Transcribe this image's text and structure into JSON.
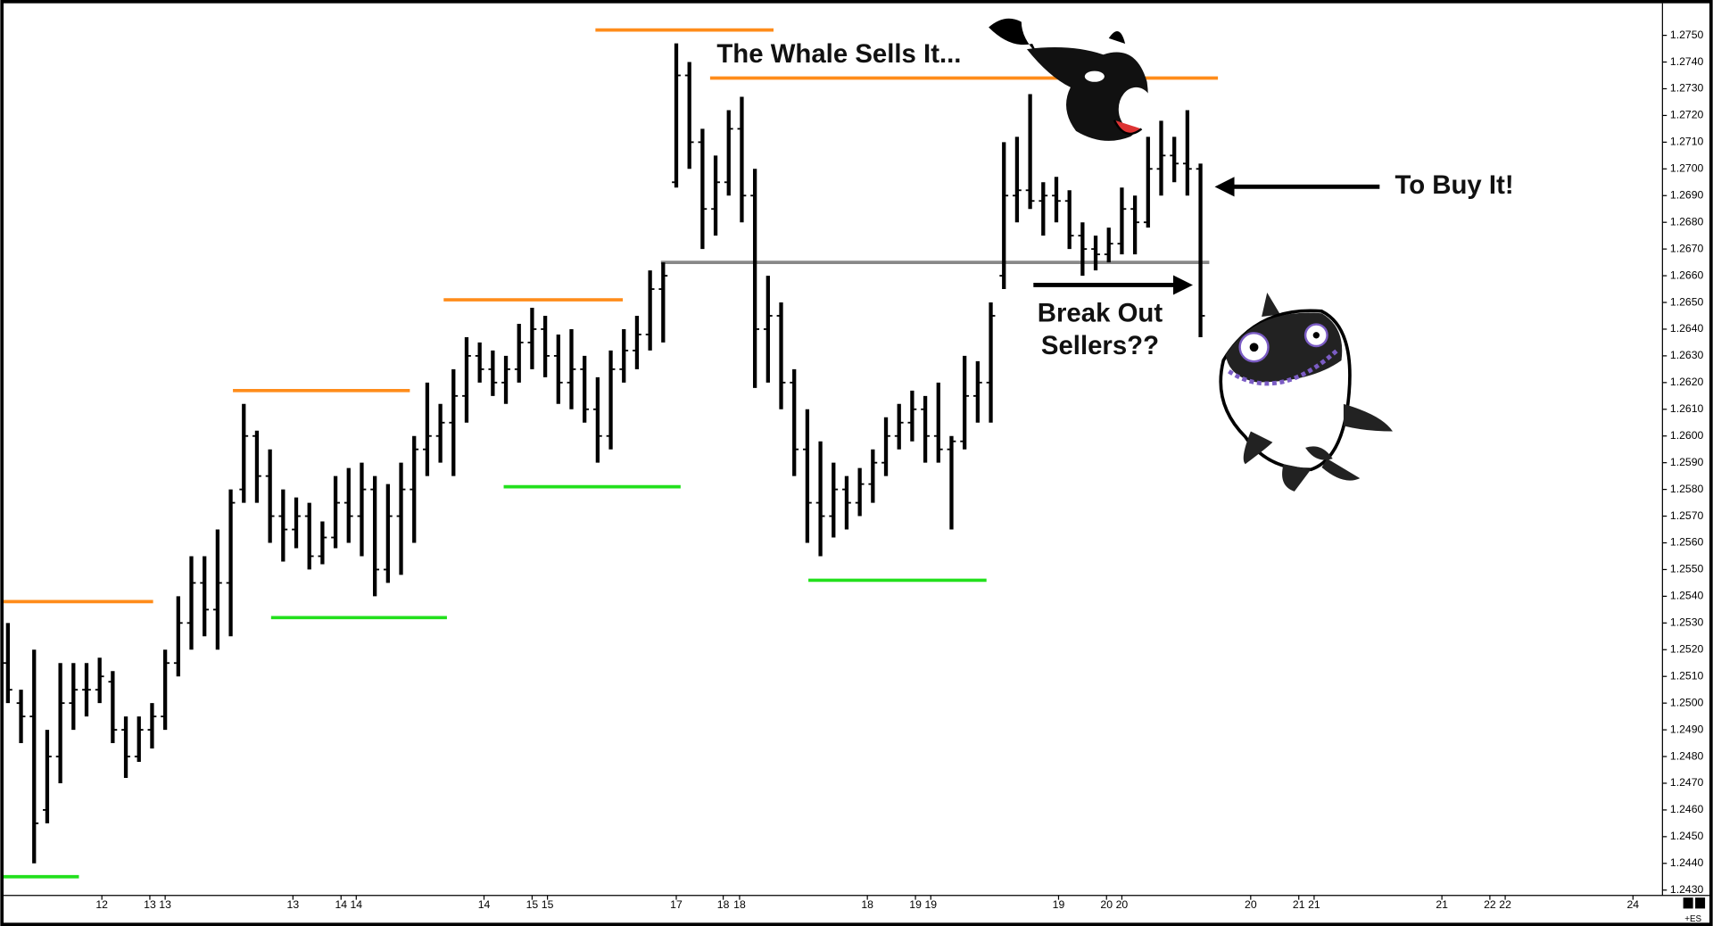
{
  "chart_data": {
    "type": "ohlc",
    "symbol": "+ES",
    "annotations": [
      "The Whale Sells It...",
      "To Buy It!",
      [
        "Break Out",
        "Sellers??"
      ]
    ],
    "color": "#000000",
    "x": [
      0,
      1,
      2,
      3,
      4,
      5,
      6,
      7,
      8,
      9,
      10,
      11,
      12,
      13,
      14,
      15,
      16,
      17,
      18,
      19,
      20,
      21,
      22,
      23,
      24,
      25,
      26,
      27,
      28,
      29,
      30,
      31,
      32,
      33,
      34,
      35,
      36,
      37,
      38,
      39,
      40,
      41,
      42,
      43,
      44,
      45,
      46,
      47,
      48,
      49,
      50,
      51,
      52,
      53,
      54,
      55,
      56,
      57,
      58,
      59,
      60,
      61,
      62,
      63,
      64,
      65,
      66,
      67,
      68,
      69,
      70,
      71,
      72,
      73,
      74,
      75,
      76,
      77,
      78,
      79,
      80,
      81,
      82,
      83,
      84,
      85,
      86,
      87,
      88,
      89,
      90,
      91
    ],
    "open": [
      1.2515,
      1.25,
      1.2495,
      1.246,
      1.248,
      1.25,
      1.2505,
      1.2505,
      1.2508,
      1.249,
      1.248,
      1.249,
      1.2495,
      1.2515,
      1.253,
      1.2545,
      1.2535,
      1.2545,
      1.258,
      1.26,
      1.2585,
      1.257,
      1.2565,
      1.257,
      1.2555,
      1.2562,
      1.2575,
      1.257,
      1.258,
      1.255,
      1.257,
      1.258,
      1.2595,
      1.26,
      1.2605,
      1.2615,
      1.263,
      1.2625,
      1.262,
      1.2625,
      1.2635,
      1.264,
      1.263,
      1.262,
      1.2625,
      1.261,
      1.26,
      1.2625,
      1.2632,
      1.2638,
      1.2655,
      1.2695,
      1.2735,
      1.271,
      1.2685,
      1.2695,
      1.2715,
      1.269,
      1.264,
      1.2645,
      1.262,
      1.2595,
      1.2575,
      1.257,
      1.258,
      1.2575,
      1.2582,
      1.259,
      1.26,
      1.2605,
      1.261,
      1.26,
      1.2595,
      1.2598,
      1.2615,
      1.262,
      1.266,
      1.269,
      1.2692,
      1.2688,
      1.269,
      1.2688,
      1.2675,
      1.267,
      1.2668,
      1.2672,
      1.2685,
      1.268,
      1.27,
      1.2705,
      1.2702,
      1.27
    ],
    "high": [
      1.253,
      1.2505,
      1.252,
      1.249,
      1.2515,
      1.2515,
      1.2515,
      1.2517,
      1.2512,
      1.2495,
      1.2495,
      1.25,
      1.252,
      1.254,
      1.2555,
      1.2555,
      1.2565,
      1.258,
      1.2612,
      1.2602,
      1.2595,
      1.258,
      1.2577,
      1.2575,
      1.2568,
      1.2585,
      1.2588,
      1.259,
      1.2585,
      1.2582,
      1.259,
      1.26,
      1.262,
      1.2612,
      1.2625,
      1.2637,
      1.2635,
      1.2632,
      1.263,
      1.2642,
      1.2648,
      1.2645,
      1.2638,
      1.264,
      1.263,
      1.2622,
      1.2632,
      1.264,
      1.2645,
      1.2662,
      1.2665,
      1.2747,
      1.274,
      1.2715,
      1.2705,
      1.2722,
      1.2727,
      1.27,
      1.266,
      1.265,
      1.2625,
      1.261,
      1.2598,
      1.259,
      1.2585,
      1.2588,
      1.2595,
      1.2607,
      1.2612,
      1.2617,
      1.2615,
      1.262,
      1.26,
      1.263,
      1.2628,
      1.265,
      1.271,
      1.2712,
      1.2728,
      1.2695,
      1.2697,
      1.2692,
      1.268,
      1.2675,
      1.2678,
      1.2693,
      1.269,
      1.2712,
      1.2718,
      1.2712,
      1.2722,
      1.2702
    ],
    "low": [
      1.25,
      1.2485,
      1.244,
      1.2455,
      1.247,
      1.249,
      1.2495,
      1.25,
      1.2485,
      1.2472,
      1.2478,
      1.2483,
      1.249,
      1.251,
      1.252,
      1.2525,
      1.252,
      1.2525,
      1.2575,
      1.2575,
      1.256,
      1.2553,
      1.2558,
      1.255,
      1.2552,
      1.2558,
      1.256,
      1.2555,
      1.254,
      1.2545,
      1.2548,
      1.256,
      1.2585,
      1.259,
      1.2585,
      1.2605,
      1.262,
      1.2615,
      1.2612,
      1.262,
      1.2625,
      1.2622,
      1.2612,
      1.261,
      1.2605,
      1.259,
      1.2595,
      1.262,
      1.2625,
      1.2632,
      1.2635,
      1.2693,
      1.27,
      1.267,
      1.2675,
      1.269,
      1.268,
      1.2618,
      1.262,
      1.261,
      1.2585,
      1.256,
      1.2555,
      1.2562,
      1.2565,
      1.257,
      1.2575,
      1.2585,
      1.2595,
      1.2598,
      1.259,
      1.259,
      1.2565,
      1.2595,
      1.2605,
      1.2605,
      1.2655,
      1.268,
      1.2685,
      1.2675,
      1.268,
      1.267,
      1.266,
      1.2662,
      1.2665,
      1.2668,
      1.2668,
      1.2678,
      1.269,
      1.2695,
      1.269,
      1.2637
    ],
    "close": [
      1.2505,
      1.2495,
      1.2455,
      1.248,
      1.25,
      1.2505,
      1.2505,
      1.251,
      1.249,
      1.248,
      1.249,
      1.2495,
      1.2515,
      1.253,
      1.2545,
      1.2535,
      1.2545,
      1.2575,
      1.26,
      1.2585,
      1.257,
      1.2565,
      1.257,
      1.2555,
      1.2562,
      1.2575,
      1.257,
      1.258,
      1.255,
      1.257,
      1.258,
      1.2595,
      1.26,
      1.2605,
      1.2615,
      1.263,
      1.2625,
      1.262,
      1.2625,
      1.2635,
      1.264,
      1.263,
      1.262,
      1.2625,
      1.261,
      1.26,
      1.2625,
      1.2632,
      1.2638,
      1.2655,
      1.266,
      1.2735,
      1.271,
      1.2685,
      1.2695,
      1.2715,
      1.269,
      1.264,
      1.2645,
      1.262,
      1.2595,
      1.2575,
      1.257,
      1.258,
      1.2575,
      1.2582,
      1.259,
      1.26,
      1.2605,
      1.261,
      1.26,
      1.2595,
      1.2598,
      1.2615,
      1.262,
      1.2645,
      1.269,
      1.2692,
      1.2688,
      1.269,
      1.2688,
      1.2675,
      1.267,
      1.2668,
      1.2672,
      1.2685,
      1.268,
      1.27,
      1.2705,
      1.2702,
      1.27,
      1.2645
    ],
    "levels": [
      {
        "value": 1.2538,
        "x": [
          -0.33,
          11.08
        ],
        "color": "#ff8c1a"
      },
      {
        "value": 1.2617,
        "x": [
          17.17,
          30.67
        ],
        "color": "#ff8c1a"
      },
      {
        "value": 1.2651,
        "x": [
          33.25,
          46.92
        ],
        "color": "#ff8c1a"
      },
      {
        "value": 1.2752,
        "x": [
          44.83,
          58.42
        ],
        "color": "#ff8c1a"
      },
      {
        "value": 1.2734,
        "x": [
          53.58,
          92.33
        ],
        "color": "#ff8c1a"
      },
      {
        "value": 1.2435,
        "x": [
          -0.33,
          5.42
        ],
        "color": "#22e01c"
      },
      {
        "value": 1.2532,
        "x": [
          20.08,
          33.5
        ],
        "color": "#22e01c"
      },
      {
        "value": 1.2581,
        "x": [
          37.83,
          51.33
        ],
        "color": "#22e01c"
      },
      {
        "value": 1.2546,
        "x": [
          61.08,
          74.67
        ],
        "color": "#22e01c"
      },
      {
        "value": 1.2665,
        "x": [
          49.83,
          91.67
        ],
        "color": "#888888"
      }
    ],
    "xlim": [
      -0.33,
      126.25
    ],
    "xticks": [
      {
        "value": 7.17,
        "label": "12"
      },
      {
        "value": 10.83,
        "label": "13"
      },
      {
        "value": 12,
        "label": "13"
      },
      {
        "value": 21.75,
        "label": "13"
      },
      {
        "value": 25.42,
        "label": "14"
      },
      {
        "value": 26.58,
        "label": "14"
      },
      {
        "value": 36.33,
        "label": "14"
      },
      {
        "value": 40,
        "label": "15"
      },
      {
        "value": 41.17,
        "label": "15"
      },
      {
        "value": 51,
        "label": "17"
      },
      {
        "value": 54.58,
        "label": "18"
      },
      {
        "value": 55.83,
        "label": "18"
      },
      {
        "value": 65.58,
        "label": "18"
      },
      {
        "value": 69.25,
        "label": "19"
      },
      {
        "value": 70.42,
        "label": "19"
      },
      {
        "value": 80.17,
        "label": "19"
      },
      {
        "value": 83.83,
        "label": "20"
      },
      {
        "value": 85,
        "label": "20"
      },
      {
        "value": 94.83,
        "label": "20"
      },
      {
        "value": 98.5,
        "label": "21"
      },
      {
        "value": 99.67,
        "label": "21"
      },
      {
        "value": 109.42,
        "label": "21"
      },
      {
        "value": 113.08,
        "label": "22"
      },
      {
        "value": 114.25,
        "label": "22"
      },
      {
        "value": 124,
        "label": "24"
      }
    ],
    "ylim": [
      1.2428,
      1.2762
    ],
    "yticks": [
      {
        "value": 1.243,
        "label": "1.2430"
      },
      {
        "value": 1.244,
        "label": "1.2440"
      },
      {
        "value": 1.245,
        "label": "1.2450"
      },
      {
        "value": 1.246,
        "label": "1.2460"
      },
      {
        "value": 1.247,
        "label": "1.2470"
      },
      {
        "value": 1.248,
        "label": "1.2480"
      },
      {
        "value": 1.249,
        "label": "1.2490"
      },
      {
        "value": 1.25,
        "label": "1.2500"
      },
      {
        "value": 1.251,
        "label": "1.2510"
      },
      {
        "value": 1.252,
        "label": "1.2520"
      },
      {
        "value": 1.253,
        "label": "1.2530"
      },
      {
        "value": 1.254,
        "label": "1.2540"
      },
      {
        "value": 1.255,
        "label": "1.2550"
      },
      {
        "value": 1.256,
        "label": "1.2560"
      },
      {
        "value": 1.257,
        "label": "1.2570"
      },
      {
        "value": 1.258,
        "label": "1.2580"
      },
      {
        "value": 1.259,
        "label": "1.2590"
      },
      {
        "value": 1.26,
        "label": "1.2600"
      },
      {
        "value": 1.261,
        "label": "1.2610"
      },
      {
        "value": 1.262,
        "label": "1.2620"
      },
      {
        "value": 1.263,
        "label": "1.2630"
      },
      {
        "value": 1.264,
        "label": "1.2640"
      },
      {
        "value": 1.265,
        "label": "1.2650"
      },
      {
        "value": 1.266,
        "label": "1.2660"
      },
      {
        "value": 1.267,
        "label": "1.2670"
      },
      {
        "value": 1.268,
        "label": "1.2680"
      },
      {
        "value": 1.269,
        "label": "1.2690"
      },
      {
        "value": 1.27,
        "label": "1.2700"
      },
      {
        "value": 1.271,
        "label": "1.2710"
      },
      {
        "value": 1.272,
        "label": "1.2720"
      },
      {
        "value": 1.273,
        "label": "1.2730"
      },
      {
        "value": 1.274,
        "label": "1.2740"
      },
      {
        "value": 1.275,
        "label": "1.2750"
      }
    ],
    "grid": false
  }
}
